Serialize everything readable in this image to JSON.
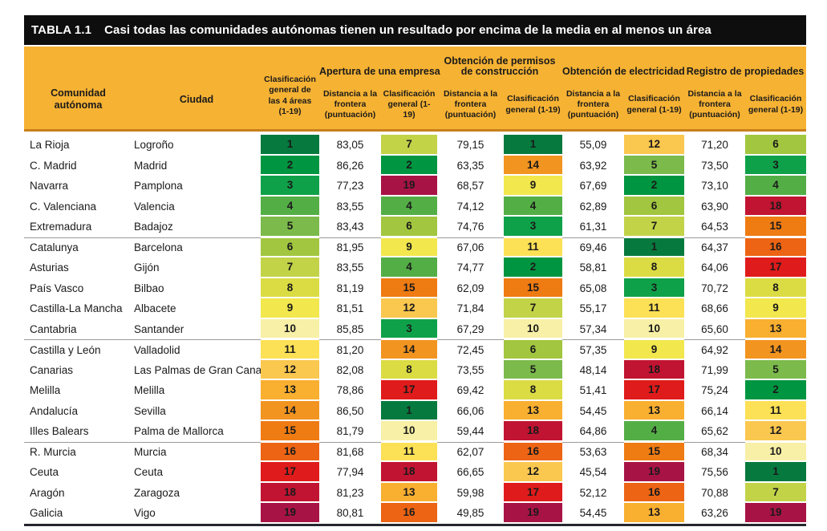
{
  "title_bar": {
    "label": "TABLA 1.1",
    "title": "Casi todas las comunidades autónomas tienen un resultado por encima de la media en al menos un área"
  },
  "header": {
    "comunidad": "Comunidad autónoma",
    "ciudad": "Ciudad",
    "clasificacion_general": "Clasificación general de las 4 áreas (1-19)",
    "sub_distancia": "Distancia a la frontera (puntuación)",
    "sub_clasificacion": "Clasificación general (1-19)",
    "groups": [
      {
        "title": "Apertura de una empresa"
      },
      {
        "title": "Obtención de permisos de construcción"
      },
      {
        "title": "Obtención de electricidad"
      },
      {
        "title": "Registro de propiedades"
      }
    ]
  },
  "colors": {
    "title_bg": "#0e0e0e",
    "title_fg": "#ffffff",
    "header_bg": "#f6b233",
    "header_border": "#c8811c",
    "separator": "#9a9a9a",
    "bottom_border": "#26262e",
    "text": "#1a1a1a",
    "rank_scale": {
      "1": "#067a3e",
      "2": "#009540",
      "3": "#0fa149",
      "4": "#54ae46",
      "5": "#7bba4b",
      "6": "#a2c63f",
      "7": "#c2d348",
      "8": "#dbdc43",
      "9": "#f2e74d",
      "10": "#f7f0a6",
      "11": "#fce156",
      "12": "#fac74f",
      "13": "#f9af30",
      "14": "#f29420",
      "15": "#ef7b13",
      "16": "#ec6414",
      "17": "#e01b1b",
      "18": "#c11432",
      "19": "#a81345"
    }
  },
  "table": {
    "group_starts": [
      5,
      10,
      15
    ],
    "rows": [
      {
        "comunidad": "La Rioja",
        "ciudad": "Logroño",
        "general": 1,
        "areas": [
          {
            "dtf": "83,05",
            "rank": 7
          },
          {
            "dtf": "79,15",
            "rank": 1
          },
          {
            "dtf": "55,09",
            "rank": 12
          },
          {
            "dtf": "71,20",
            "rank": 6
          }
        ]
      },
      {
        "comunidad": "C. Madrid",
        "ciudad": "Madrid",
        "general": 2,
        "areas": [
          {
            "dtf": "86,26",
            "rank": 2
          },
          {
            "dtf": "63,35",
            "rank": 14
          },
          {
            "dtf": "63,92",
            "rank": 5
          },
          {
            "dtf": "73,50",
            "rank": 3
          }
        ]
      },
      {
        "comunidad": "Navarra",
        "ciudad": "Pamplona",
        "general": 3,
        "areas": [
          {
            "dtf": "77,23",
            "rank": 19
          },
          {
            "dtf": "68,57",
            "rank": 9
          },
          {
            "dtf": "67,69",
            "rank": 2
          },
          {
            "dtf": "73,10",
            "rank": 4
          }
        ]
      },
      {
        "comunidad": "C. Valenciana",
        "ciudad": "Valencia",
        "general": 4,
        "areas": [
          {
            "dtf": "83,55",
            "rank": 4
          },
          {
            "dtf": "74,12",
            "rank": 4
          },
          {
            "dtf": "62,89",
            "rank": 6
          },
          {
            "dtf": "63,90",
            "rank": 18
          }
        ]
      },
      {
        "comunidad": "Extremadura",
        "ciudad": "Badajoz",
        "general": 5,
        "areas": [
          {
            "dtf": "83,43",
            "rank": 6
          },
          {
            "dtf": "74,76",
            "rank": 3
          },
          {
            "dtf": "61,31",
            "rank": 7
          },
          {
            "dtf": "64,53",
            "rank": 15
          }
        ]
      },
      {
        "comunidad": "Catalunya",
        "ciudad": "Barcelona",
        "general": 6,
        "areas": [
          {
            "dtf": "81,95",
            "rank": 9
          },
          {
            "dtf": "67,06",
            "rank": 11
          },
          {
            "dtf": "69,46",
            "rank": 1
          },
          {
            "dtf": "64,37",
            "rank": 16
          }
        ]
      },
      {
        "comunidad": "Asturias",
        "ciudad": "Gijón",
        "general": 7,
        "areas": [
          {
            "dtf": "83,55",
            "rank": 4
          },
          {
            "dtf": "74,77",
            "rank": 2
          },
          {
            "dtf": "58,81",
            "rank": 8
          },
          {
            "dtf": "64,06",
            "rank": 17
          }
        ]
      },
      {
        "comunidad": "País Vasco",
        "ciudad": "Bilbao",
        "general": 8,
        "areas": [
          {
            "dtf": "81,19",
            "rank": 15
          },
          {
            "dtf": "62,09",
            "rank": 15
          },
          {
            "dtf": "65,08",
            "rank": 3
          },
          {
            "dtf": "70,72",
            "rank": 8
          }
        ]
      },
      {
        "comunidad": "Castilla-La Mancha",
        "ciudad": "Albacete",
        "general": 9,
        "areas": [
          {
            "dtf": "81,51",
            "rank": 12
          },
          {
            "dtf": "71,84",
            "rank": 7
          },
          {
            "dtf": "55,17",
            "rank": 11
          },
          {
            "dtf": "68,66",
            "rank": 9
          }
        ]
      },
      {
        "comunidad": "Cantabria",
        "ciudad": "Santander",
        "general": 10,
        "areas": [
          {
            "dtf": "85,85",
            "rank": 3
          },
          {
            "dtf": "67,29",
            "rank": 10
          },
          {
            "dtf": "57,34",
            "rank": 10
          },
          {
            "dtf": "65,60",
            "rank": 13
          }
        ]
      },
      {
        "comunidad": "Castilla y León",
        "ciudad": "Valladolid",
        "general": 11,
        "areas": [
          {
            "dtf": "81,20",
            "rank": 14
          },
          {
            "dtf": "72,45",
            "rank": 6
          },
          {
            "dtf": "57,35",
            "rank": 9
          },
          {
            "dtf": "64,92",
            "rank": 14
          }
        ]
      },
      {
        "comunidad": "Canarias",
        "ciudad": "Las Palmas de Gran Canaria",
        "general": 12,
        "areas": [
          {
            "dtf": "82,08",
            "rank": 8
          },
          {
            "dtf": "73,55",
            "rank": 5
          },
          {
            "dtf": "48,14",
            "rank": 18
          },
          {
            "dtf": "71,99",
            "rank": 5
          }
        ]
      },
      {
        "comunidad": "Melilla",
        "ciudad": "Melilla",
        "general": 13,
        "areas": [
          {
            "dtf": "78,86",
            "rank": 17
          },
          {
            "dtf": "69,42",
            "rank": 8
          },
          {
            "dtf": "51,41",
            "rank": 17
          },
          {
            "dtf": "75,24",
            "rank": 2
          }
        ]
      },
      {
        "comunidad": "Andalucía",
        "ciudad": "Sevilla",
        "general": 14,
        "areas": [
          {
            "dtf": "86,50",
            "rank": 1
          },
          {
            "dtf": "66,06",
            "rank": 13
          },
          {
            "dtf": "54,45",
            "rank": 13
          },
          {
            "dtf": "66,14",
            "rank": 11
          }
        ]
      },
      {
        "comunidad": "Illes Balears",
        "ciudad": "Palma de Mallorca",
        "general": 15,
        "areas": [
          {
            "dtf": "81,79",
            "rank": 10
          },
          {
            "dtf": "59,44",
            "rank": 18
          },
          {
            "dtf": "64,86",
            "rank": 4
          },
          {
            "dtf": "65,62",
            "rank": 12
          }
        ]
      },
      {
        "comunidad": "R. Murcia",
        "ciudad": "Murcia",
        "general": 16,
        "areas": [
          {
            "dtf": "81,68",
            "rank": 11
          },
          {
            "dtf": "62,07",
            "rank": 16
          },
          {
            "dtf": "53,63",
            "rank": 15
          },
          {
            "dtf": "68,34",
            "rank": 10
          }
        ]
      },
      {
        "comunidad": "Ceuta",
        "ciudad": "Ceuta",
        "general": 17,
        "areas": [
          {
            "dtf": "77,94",
            "rank": 18
          },
          {
            "dtf": "66,65",
            "rank": 12
          },
          {
            "dtf": "45,54",
            "rank": 19
          },
          {
            "dtf": "75,56",
            "rank": 1
          }
        ]
      },
      {
        "comunidad": "Aragón",
        "ciudad": "Zaragoza",
        "general": 18,
        "areas": [
          {
            "dtf": "81,23",
            "rank": 13
          },
          {
            "dtf": "59,98",
            "rank": 17
          },
          {
            "dtf": "52,12",
            "rank": 16
          },
          {
            "dtf": "70,88",
            "rank": 7
          }
        ]
      },
      {
        "comunidad": "Galicia",
        "ciudad": "Vigo",
        "general": 19,
        "areas": [
          {
            "dtf": "80,81",
            "rank": 16
          },
          {
            "dtf": "49,85",
            "rank": 19
          },
          {
            "dtf": "54,45",
            "rank": 13
          },
          {
            "dtf": "63,26",
            "rank": 19
          }
        ]
      }
    ]
  }
}
